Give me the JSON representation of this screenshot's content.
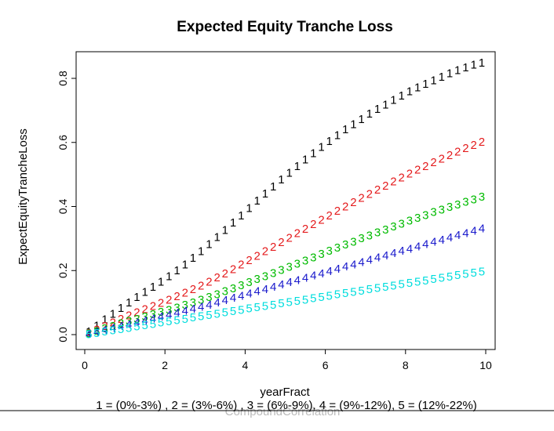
{
  "chart_data": {
    "type": "scatter",
    "title": "Expected Equity Tranche Loss",
    "xlabel": "yearFract",
    "ylabel": "ExpectEquityTrancheLoss",
    "xlim": [
      0,
      10
    ],
    "ylim": [
      0,
      0.85
    ],
    "xticks": [
      "0",
      "2",
      "4",
      "6",
      "8",
      "10"
    ],
    "yticks": [
      "0.0",
      "0.2",
      "0.4",
      "0.6",
      "0.8"
    ],
    "grid": false,
    "legend_caption": "1 = (0%-3%) , 2 = (3%-6%) , 3 = (6%-9%), 4 = (9%-12%), 5 = (12%-22%)",
    "footer_text": "CompoundCorrelation",
    "x": [
      0.1,
      0.3,
      0.5,
      0.7,
      0.9,
      1.1,
      1.3,
      1.5,
      1.7,
      1.9,
      2.1,
      2.3,
      2.5,
      2.7,
      2.9,
      3.1,
      3.3,
      3.5,
      3.7,
      3.9,
      4.1,
      4.3,
      4.5,
      4.7,
      4.9,
      5.1,
      5.3,
      5.5,
      5.7,
      5.9,
      6.1,
      6.3,
      6.5,
      6.7,
      6.9,
      7.1,
      7.3,
      7.5,
      7.7,
      7.9,
      8.1,
      8.3,
      8.5,
      8.7,
      8.9,
      9.1,
      9.3,
      9.5,
      9.7,
      9.9
    ],
    "series": [
      {
        "symbol": "1",
        "color": "#000000",
        "values": [
          0.01,
          0.029,
          0.048,
          0.066,
          0.084,
          0.101,
          0.118,
          0.134,
          0.15,
          0.166,
          0.183,
          0.201,
          0.22,
          0.24,
          0.261,
          0.283,
          0.305,
          0.327,
          0.35,
          0.373,
          0.396,
          0.419,
          0.441,
          0.463,
          0.485,
          0.506,
          0.527,
          0.547,
          0.567,
          0.586,
          0.605,
          0.623,
          0.641,
          0.658,
          0.674,
          0.69,
          0.705,
          0.719,
          0.733,
          0.747,
          0.76,
          0.772,
          0.784,
          0.795,
          0.806,
          0.816,
          0.826,
          0.835,
          0.843,
          0.85
        ]
      },
      {
        "symbol": "2",
        "color": "#e41a1c",
        "values": [
          0.006,
          0.017,
          0.028,
          0.039,
          0.05,
          0.06,
          0.07,
          0.08,
          0.09,
          0.1,
          0.11,
          0.12,
          0.131,
          0.142,
          0.154,
          0.166,
          0.179,
          0.192,
          0.205,
          0.219,
          0.233,
          0.247,
          0.261,
          0.275,
          0.289,
          0.303,
          0.317,
          0.331,
          0.345,
          0.359,
          0.373,
          0.387,
          0.401,
          0.414,
          0.427,
          0.44,
          0.453,
          0.466,
          0.479,
          0.491,
          0.503,
          0.515,
          0.527,
          0.539,
          0.55,
          0.561,
          0.572,
          0.583,
          0.593,
          0.603
        ]
      },
      {
        "symbol": "3",
        "color": "#00bb00",
        "values": [
          0.004,
          0.012,
          0.02,
          0.028,
          0.036,
          0.043,
          0.05,
          0.057,
          0.064,
          0.071,
          0.078,
          0.085,
          0.093,
          0.101,
          0.109,
          0.118,
          0.127,
          0.136,
          0.145,
          0.155,
          0.164,
          0.174,
          0.183,
          0.193,
          0.203,
          0.212,
          0.222,
          0.232,
          0.242,
          0.252,
          0.262,
          0.272,
          0.282,
          0.291,
          0.301,
          0.31,
          0.32,
          0.329,
          0.338,
          0.347,
          0.356,
          0.365,
          0.374,
          0.383,
          0.391,
          0.399,
          0.407,
          0.415,
          0.423,
          0.431
        ]
      },
      {
        "symbol": "4",
        "color": "#1a1acc",
        "values": [
          0.003,
          0.009,
          0.015,
          0.021,
          0.027,
          0.033,
          0.039,
          0.045,
          0.051,
          0.057,
          0.063,
          0.069,
          0.075,
          0.081,
          0.087,
          0.094,
          0.101,
          0.108,
          0.115,
          0.122,
          0.129,
          0.136,
          0.143,
          0.15,
          0.157,
          0.164,
          0.171,
          0.178,
          0.185,
          0.192,
          0.199,
          0.206,
          0.213,
          0.22,
          0.227,
          0.234,
          0.241,
          0.248,
          0.255,
          0.262,
          0.269,
          0.276,
          0.283,
          0.29,
          0.297,
          0.304,
          0.311,
          0.318,
          0.325,
          0.332
        ]
      },
      {
        "symbol": "5",
        "color": "#00dddd",
        "values": [
          0.002,
          0.006,
          0.01,
          0.014,
          0.018,
          0.022,
          0.026,
          0.03,
          0.034,
          0.038,
          0.042,
          0.046,
          0.05,
          0.054,
          0.058,
          0.062,
          0.066,
          0.07,
          0.074,
          0.078,
          0.082,
          0.086,
          0.09,
          0.094,
          0.098,
          0.102,
          0.106,
          0.11,
          0.114,
          0.118,
          0.122,
          0.126,
          0.13,
          0.134,
          0.138,
          0.142,
          0.146,
          0.15,
          0.154,
          0.158,
          0.162,
          0.166,
          0.17,
          0.174,
          0.178,
          0.182,
          0.186,
          0.19,
          0.194,
          0.198
        ]
      }
    ]
  }
}
